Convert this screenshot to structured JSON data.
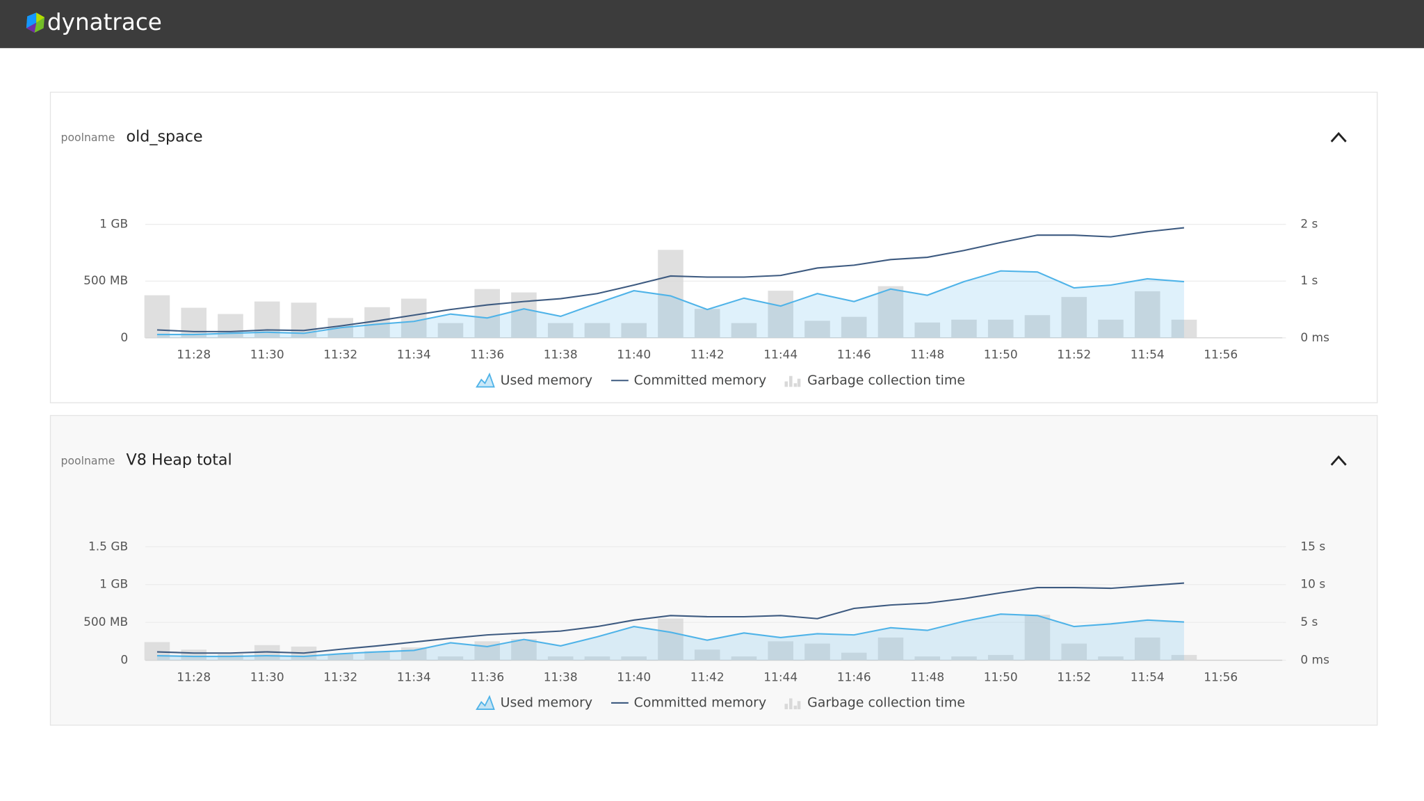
{
  "brand": "dynatrace",
  "chart_data": [
    {
      "type": "combo",
      "label": "poolname",
      "title": "old_space",
      "categories": [
        null,
        "11:28",
        null,
        "11:30",
        null,
        "11:32",
        null,
        "11:34",
        null,
        "11:36",
        null,
        "11:38",
        null,
        "11:40",
        null,
        "11:42",
        null,
        "11:44",
        null,
        "11:46",
        null,
        "11:48",
        null,
        "11:50",
        null,
        "11:52",
        null,
        "11:54",
        null,
        "11:56"
      ],
      "ylim": [
        0,
        1000
      ],
      "yticks": [
        0,
        {
          "value": 500,
          "label": "500 MB"
        },
        {
          "value": 1000,
          "label": "1 GB"
        }
      ],
      "y2lim": [
        0,
        2
      ],
      "y2ticks": [
        {
          "value": 0,
          "label": "0 ms"
        },
        {
          "value": 1,
          "label": "1 s"
        },
        {
          "value": 2,
          "label": "2 s"
        }
      ],
      "grid": true,
      "series": [
        {
          "name": "Used memory",
          "type": "area",
          "color": "#4fb3e8",
          "values": [
            30,
            30,
            40,
            50,
            40,
            90,
            120,
            145,
            210,
            175,
            255,
            190,
            305,
            415,
            370,
            250,
            350,
            280,
            390,
            320,
            430,
            375,
            495,
            590,
            580,
            440,
            465,
            520,
            495,
            null
          ]
        },
        {
          "name": "Committed memory",
          "type": "line",
          "color": "#3d5a80",
          "values": [
            70,
            55,
            55,
            70,
            65,
            105,
            150,
            200,
            250,
            290,
            320,
            345,
            390,
            465,
            545,
            535,
            535,
            550,
            615,
            640,
            690,
            710,
            770,
            840,
            905,
            905,
            890,
            935,
            970,
            null
          ]
        },
        {
          "name": "Garbage collection time",
          "type": "bar",
          "color": "#d9d9d9",
          "axis": "y2",
          "values": [
            0.75,
            0.53,
            0.42,
            0.64,
            0.62,
            0.35,
            0.54,
            0.69,
            0.26,
            0.86,
            0.8,
            0.26,
            0.26,
            0.26,
            1.55,
            0.51,
            0.26,
            0.83,
            0.3,
            0.37,
            0.91,
            0.27,
            0.32,
            0.32,
            0.4,
            0.72,
            0.32,
            0.82,
            0.32,
            null
          ]
        }
      ]
    },
    {
      "type": "combo",
      "label": "poolname",
      "title": "V8 Heap total",
      "categories": [
        null,
        "11:28",
        null,
        "11:30",
        null,
        "11:32",
        null,
        "11:34",
        null,
        "11:36",
        null,
        "11:38",
        null,
        "11:40",
        null,
        "11:42",
        null,
        "11:44",
        null,
        "11:46",
        null,
        "11:48",
        null,
        "11:50",
        null,
        "11:52",
        null,
        "11:54",
        null,
        "11:56"
      ],
      "ylim": [
        0,
        1500
      ],
      "yticks": [
        0,
        {
          "value": 500,
          "label": "500 MB"
        },
        {
          "value": 1000,
          "label": "1 GB"
        },
        {
          "value": 1500,
          "label": "1.5 GB"
        }
      ],
      "y2lim": [
        0,
        15
      ],
      "y2ticks": [
        {
          "value": 0,
          "label": "0 ms"
        },
        {
          "value": 5,
          "label": "5 s"
        },
        {
          "value": 10,
          "label": "10 s"
        },
        {
          "value": 15,
          "label": "15 s"
        }
      ],
      "grid": true,
      "series": [
        {
          "name": "Used memory",
          "type": "area",
          "color": "#4fb3e8",
          "values": [
            60,
            50,
            50,
            60,
            50,
            85,
            110,
            130,
            230,
            180,
            275,
            190,
            310,
            445,
            370,
            265,
            360,
            300,
            350,
            335,
            430,
            395,
            515,
            610,
            590,
            445,
            480,
            530,
            505,
            null
          ]
        },
        {
          "name": "Committed memory",
          "type": "line",
          "color": "#3d5a80",
          "values": [
            110,
            95,
            95,
            110,
            95,
            145,
            190,
            240,
            290,
            335,
            360,
            385,
            445,
            530,
            590,
            575,
            575,
            590,
            550,
            685,
            730,
            755,
            815,
            890,
            960,
            960,
            950,
            985,
            1020,
            null
          ]
        },
        {
          "name": "Garbage collection time",
          "type": "bar",
          "color": "#d9d9d9",
          "axis": "y2",
          "values": [
            2.4,
            1.4,
            0.8,
            2.0,
            1.8,
            0.8,
            1.2,
            1.7,
            0.5,
            2.5,
            2.8,
            0.5,
            0.5,
            0.5,
            5.5,
            1.4,
            0.5,
            2.5,
            2.2,
            1.0,
            3.0,
            0.5,
            0.5,
            0.7,
            6.0,
            2.2,
            0.5,
            3.0,
            0.7,
            null
          ]
        }
      ]
    }
  ]
}
